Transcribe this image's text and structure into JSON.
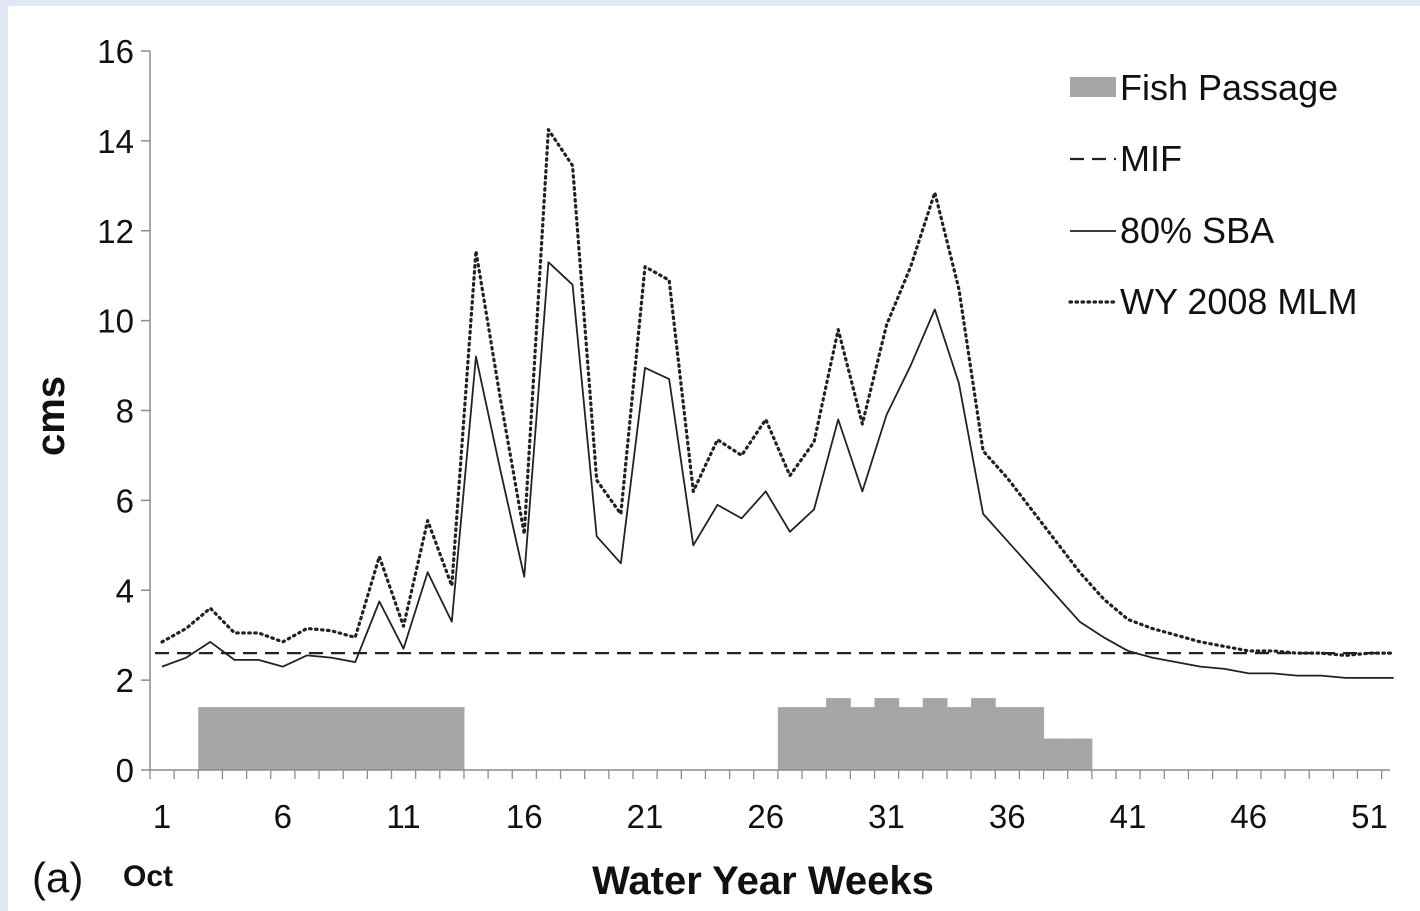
{
  "chart_data": {
    "type": "line",
    "panel_label": "(a)",
    "start_month_label": "Oct",
    "xlabel": "Water Year Weeks",
    "ylabel": "cms",
    "ylim": [
      0,
      16
    ],
    "yticks": [
      0,
      2,
      4,
      6,
      8,
      10,
      12,
      14,
      16
    ],
    "xlim": [
      1,
      52
    ],
    "xtick_labels": [
      "1",
      "6",
      "11",
      "16",
      "21",
      "26",
      "31",
      "36",
      "41",
      "46",
      "51"
    ],
    "grid": false,
    "legend_position": "top-right",
    "legend": [
      {
        "label": "Fish Passage",
        "style": "bar"
      },
      {
        "label": "MIF",
        "style": "dashed"
      },
      {
        "label": "80% SBA",
        "style": "solid"
      },
      {
        "label": "WY 2008 MLM",
        "style": "dotted"
      }
    ],
    "colors": {
      "bars": "#a6a6a6",
      "lines": "#222222"
    },
    "fish_passage": {
      "x": [
        1,
        2,
        3,
        4,
        5,
        6,
        7,
        8,
        9,
        10,
        11,
        12,
        13,
        14,
        15,
        16,
        17,
        18,
        19,
        20,
        21,
        22,
        23,
        24,
        25,
        26,
        27,
        28,
        29,
        30,
        31,
        32,
        33,
        34,
        35,
        36,
        37,
        38,
        39,
        40,
        41,
        42,
        43,
        44,
        45,
        46,
        47,
        48,
        49,
        50,
        51,
        52
      ],
      "values": [
        0,
        0,
        1.4,
        1.4,
        1.4,
        1.4,
        1.4,
        1.4,
        1.4,
        1.4,
        1.4,
        1.4,
        1.4,
        0,
        0,
        0,
        0,
        0,
        0,
        0,
        0,
        0,
        0,
        0,
        0,
        0,
        1.4,
        1.4,
        1.6,
        1.4,
        1.6,
        1.4,
        1.6,
        1.4,
        1.6,
        1.4,
        1.4,
        0.7,
        0.7,
        0,
        0,
        0,
        0,
        0,
        0,
        0,
        0,
        0,
        0,
        0,
        0,
        0
      ]
    },
    "series": [
      {
        "name": "MIF",
        "style": "dashed",
        "x": [
          1,
          52
        ],
        "values": [
          2.6,
          2.6
        ]
      },
      {
        "name": "80% SBA",
        "style": "solid",
        "x": [
          1,
          2,
          3,
          4,
          5,
          6,
          7,
          8,
          9,
          10,
          11,
          12,
          13,
          14,
          15,
          16,
          17,
          18,
          19,
          20,
          21,
          22,
          23,
          24,
          25,
          26,
          27,
          28,
          29,
          30,
          31,
          32,
          33,
          34,
          35,
          36,
          37,
          38,
          39,
          40,
          41,
          42,
          43,
          44,
          45,
          46,
          47,
          48,
          49,
          50,
          51,
          52
        ],
        "values": [
          2.3,
          2.5,
          2.85,
          2.45,
          2.45,
          2.3,
          2.55,
          2.5,
          2.4,
          3.75,
          2.7,
          4.4,
          3.3,
          9.2,
          6.7,
          4.3,
          11.3,
          10.8,
          5.2,
          4.6,
          8.95,
          8.7,
          5.0,
          5.9,
          5.6,
          6.2,
          5.3,
          5.8,
          7.8,
          6.2,
          7.9,
          9.0,
          10.25,
          8.6,
          5.7,
          5.1,
          4.5,
          3.9,
          3.3,
          2.95,
          2.65,
          2.5,
          2.4,
          2.3,
          2.25,
          2.15,
          2.15,
          2.1,
          2.1,
          2.05,
          2.05,
          2.05
        ]
      },
      {
        "name": "WY 2008 MLM",
        "style": "dotted",
        "x": [
          1,
          2,
          3,
          4,
          5,
          6,
          7,
          8,
          9,
          10,
          11,
          12,
          13,
          14,
          15,
          16,
          17,
          18,
          19,
          20,
          21,
          22,
          23,
          24,
          25,
          26,
          27,
          28,
          29,
          30,
          31,
          32,
          33,
          34,
          35,
          36,
          37,
          38,
          39,
          40,
          41,
          42,
          43,
          44,
          45,
          46,
          47,
          48,
          49,
          50,
          51,
          52
        ],
        "values": [
          2.85,
          3.15,
          3.6,
          3.05,
          3.05,
          2.85,
          3.15,
          3.1,
          2.95,
          4.75,
          3.2,
          5.55,
          4.1,
          11.55,
          8.3,
          5.25,
          14.25,
          13.45,
          6.45,
          5.7,
          11.2,
          10.9,
          6.2,
          7.35,
          7.0,
          7.8,
          6.55,
          7.3,
          9.8,
          7.7,
          9.9,
          11.2,
          12.85,
          10.7,
          7.1,
          6.5,
          5.8,
          5.1,
          4.4,
          3.8,
          3.35,
          3.15,
          3.0,
          2.85,
          2.75,
          2.65,
          2.65,
          2.6,
          2.6,
          2.55,
          2.6,
          2.6
        ]
      }
    ]
  }
}
